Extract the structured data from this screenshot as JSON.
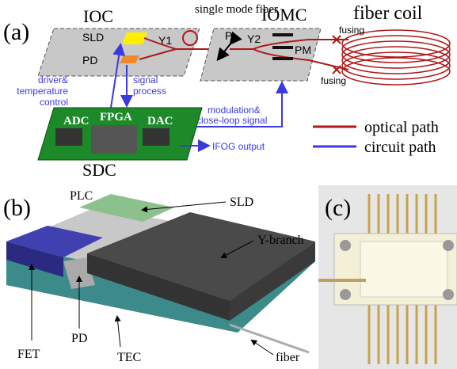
{
  "panel_a": {
    "label": "(a)",
    "ioc": "IOC",
    "smf": "single mode fiber",
    "iomc": "IOMC",
    "coil": "fiber coil",
    "sld": "SLD",
    "y1": "Y1",
    "pd": "PD",
    "p": "P",
    "y2": "Y2",
    "pm": "PM",
    "fusing": [
      "fusing",
      "fusing"
    ],
    "driver": [
      "driver&",
      "temperature",
      "control"
    ],
    "signal": [
      "signal",
      "process"
    ],
    "modulation": [
      "modulation&",
      "close-loop signal"
    ],
    "chips": [
      "ADC",
      "FPGA",
      "DAC"
    ],
    "sdc": "SDC",
    "output": "IFOG output",
    "legend": [
      "optical path",
      "circuit path"
    ]
  },
  "panel_b": {
    "label": "(b)",
    "plc": "PLC",
    "sld": "SLD",
    "ybranch": "Y-branch",
    "fet": "FET",
    "pd": "PD",
    "tec": "TEC",
    "fiber": "fiber"
  },
  "panel_c": {
    "label": "(c)"
  }
}
